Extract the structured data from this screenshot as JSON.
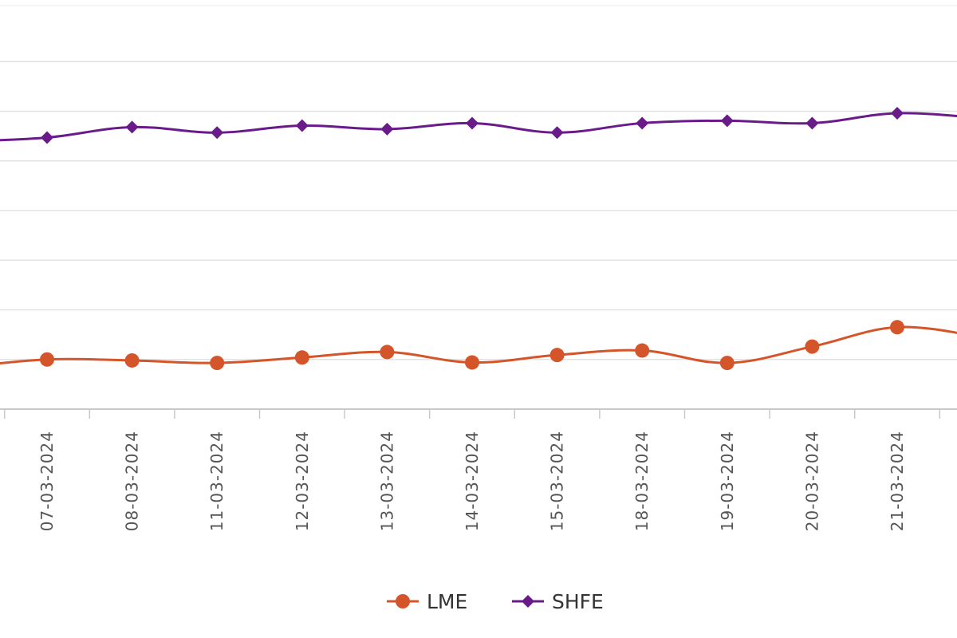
{
  "chart_data": {
    "type": "line",
    "categories": [
      "07-03-2024",
      "08-03-2024",
      "11-03-2024",
      "12-03-2024",
      "13-03-2024",
      "14-03-2024",
      "15-03-2024",
      "18-03-2024",
      "19-03-2024",
      "20-03-2024",
      "21-03-2024"
    ],
    "series": [
      {
        "name": "LME",
        "color": "#d4552a",
        "marker": "circle",
        "values": [
          1.0,
          0.98,
          0.93,
          1.04,
          1.15,
          0.94,
          1.09,
          1.18,
          0.93,
          1.26,
          1.65
        ],
        "lead_in": 0.84,
        "lead_out": 1.45
      },
      {
        "name": "SHFE",
        "color": "#6a1b8a",
        "marker": "diamond",
        "values": [
          5.47,
          5.68,
          5.57,
          5.71,
          5.64,
          5.76,
          5.57,
          5.76,
          5.81,
          5.76,
          5.96
        ],
        "lead_in": 5.39,
        "lead_out": 5.86
      }
    ],
    "ylim": [
      0,
      8
    ],
    "grid": true,
    "legend": "bottom-center",
    "title": "",
    "xlabel": "",
    "ylabel": ""
  }
}
